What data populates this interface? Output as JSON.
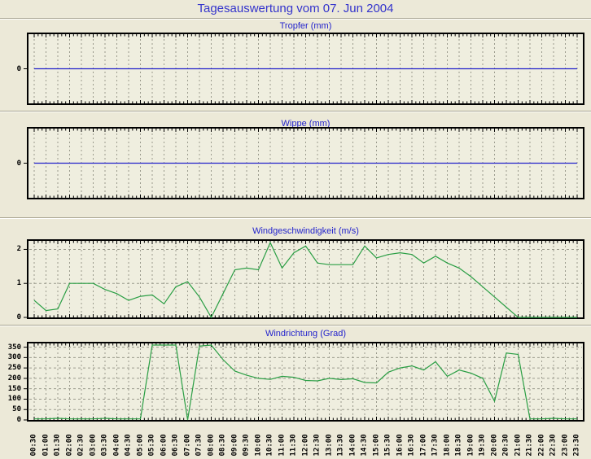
{
  "page": {
    "title": "Tagesauswertung vom 07. Jun 2004"
  },
  "colors": {
    "page_bg": "#ece9d8",
    "plot_bg": "#efeedf",
    "border": "#000000",
    "grid": "#9b9b8d",
    "title_blue": "#3333cc",
    "chart_title_blue": "#2222cc",
    "line_blue": "#2323cb",
    "line_green": "#2a9e44"
  },
  "time_labels": [
    "00:30",
    "01:00",
    "01:30",
    "02:00",
    "02:30",
    "03:00",
    "03:30",
    "04:00",
    "04:30",
    "05:00",
    "05:30",
    "06:00",
    "06:30",
    "07:00",
    "07:30",
    "08:00",
    "08:30",
    "09:00",
    "09:30",
    "10:00",
    "10:30",
    "11:00",
    "11:30",
    "12:00",
    "12:30",
    "13:00",
    "13:30",
    "14:00",
    "14:30",
    "15:00",
    "15:30",
    "16:00",
    "16:30",
    "17:00",
    "17:30",
    "18:00",
    "18:30",
    "19:00",
    "19:30",
    "20:00",
    "20:30",
    "21:00",
    "21:30",
    "22:00",
    "22:30",
    "23:00",
    "23:30"
  ],
  "chart_data": [
    {
      "type": "line",
      "title": "Tropfer (mm)",
      "ylabel": "mm",
      "color": "#2323cb",
      "ylim": [
        -1,
        1
      ],
      "yticks": [
        0
      ],
      "grid": true,
      "values": [
        0,
        0,
        0,
        0,
        0,
        0,
        0,
        0,
        0,
        0,
        0,
        0,
        0,
        0,
        0,
        0,
        0,
        0,
        0,
        0,
        0,
        0,
        0,
        0,
        0,
        0,
        0,
        0,
        0,
        0,
        0,
        0,
        0,
        0,
        0,
        0,
        0,
        0,
        0,
        0,
        0,
        0,
        0,
        0,
        0,
        0,
        0
      ]
    },
    {
      "type": "line",
      "title": "Wippe (mm)",
      "ylabel": "mm",
      "color": "#2323cb",
      "ylim": [
        -1,
        1
      ],
      "yticks": [
        0
      ],
      "grid": true,
      "values": [
        0,
        0,
        0,
        0,
        0,
        0,
        0,
        0,
        0,
        0,
        0,
        0,
        0,
        0,
        0,
        0,
        0,
        0,
        0,
        0,
        0,
        0,
        0,
        0,
        0,
        0,
        0,
        0,
        0,
        0,
        0,
        0,
        0,
        0,
        0,
        0,
        0,
        0,
        0,
        0,
        0,
        0,
        0,
        0,
        0,
        0,
        0
      ]
    },
    {
      "type": "line",
      "title": "Windgeschwindigkeit (m/s)",
      "ylabel": "m/s",
      "color": "#2a9e44",
      "ylim": [
        0,
        2.25
      ],
      "yticks": [
        0,
        1,
        2
      ],
      "grid": true,
      "values": [
        0.5,
        0.2,
        0.25,
        1.0,
        1.0,
        1.0,
        0.82,
        0.7,
        0.5,
        0.62,
        0.66,
        0.4,
        0.9,
        1.05,
        0.6,
        0.0,
        0.7,
        1.4,
        1.45,
        1.4,
        2.2,
        1.45,
        1.9,
        2.1,
        1.6,
        1.55,
        1.55,
        1.55,
        2.1,
        1.75,
        1.85,
        1.9,
        1.85,
        1.6,
        1.8,
        1.6,
        1.45,
        1.2,
        0.9,
        0.6,
        0.3,
        0.0,
        0.0,
        0.0,
        0.0,
        0.0,
        0.0
      ]
    },
    {
      "type": "line",
      "title": "Windrichtung (Grad)",
      "ylabel": "Grad",
      "color": "#2a9e44",
      "ylim": [
        0,
        368
      ],
      "yticks": [
        0,
        50,
        100,
        150,
        200,
        250,
        300,
        350
      ],
      "grid": true,
      "values": [
        5,
        5,
        8,
        5,
        5,
        5,
        8,
        5,
        5,
        5,
        360,
        360,
        360,
        0,
        355,
        360,
        290,
        235,
        215,
        200,
        195,
        210,
        205,
        190,
        188,
        200,
        194,
        198,
        180,
        178,
        230,
        250,
        260,
        240,
        280,
        210,
        240,
        225,
        200,
        90,
        322,
        315,
        5,
        5,
        8,
        5,
        5
      ]
    }
  ]
}
